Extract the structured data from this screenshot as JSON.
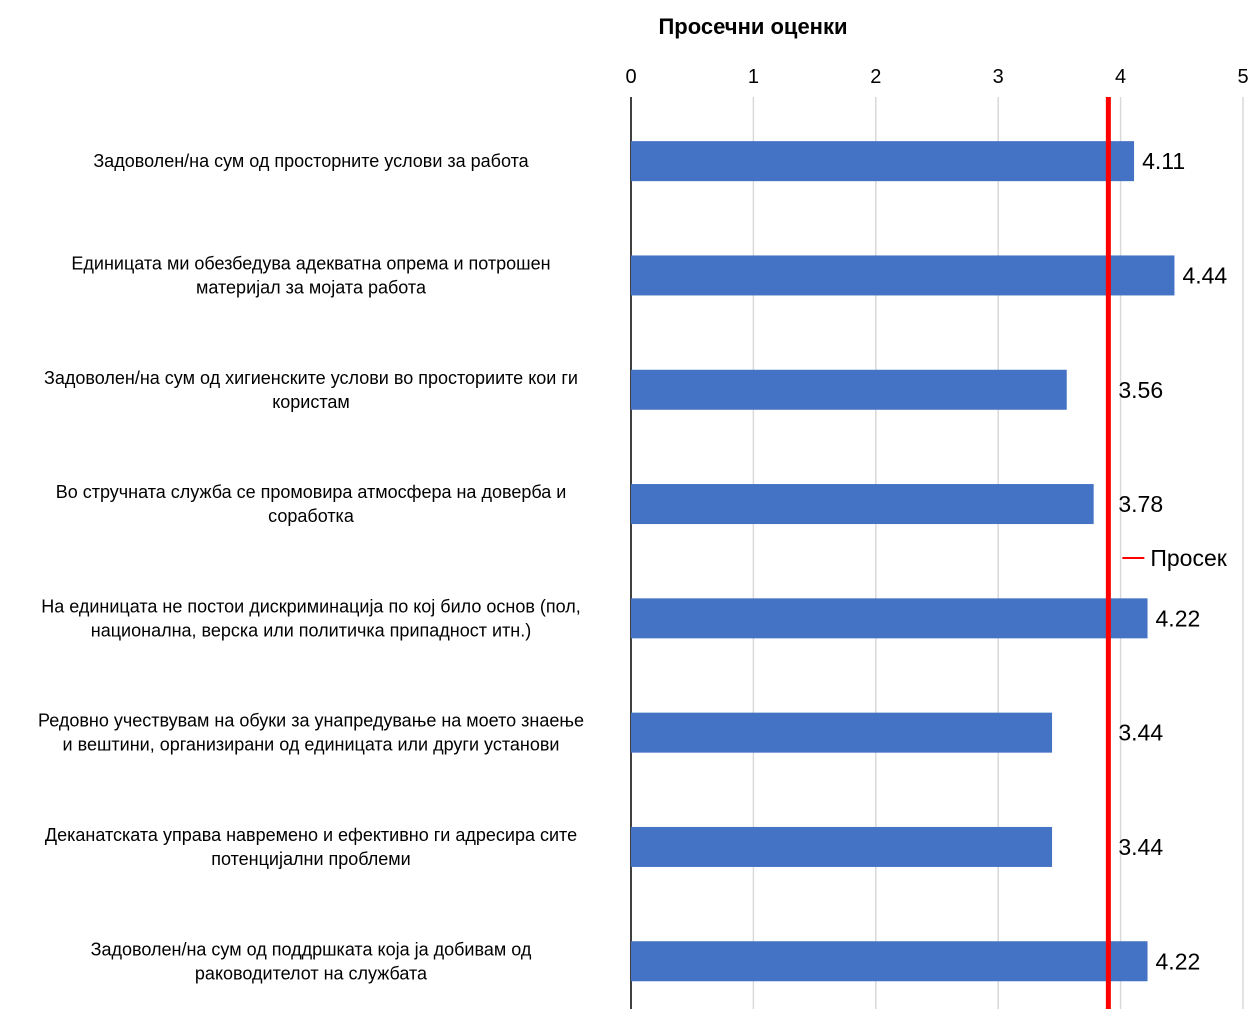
{
  "chart_data": {
    "type": "bar",
    "orientation": "horizontal",
    "title": "Просечни оценки",
    "xlim": [
      0,
      5
    ],
    "x_ticks": [
      "0",
      "1",
      "2",
      "3",
      "4",
      "5"
    ],
    "grid": true,
    "categories": [
      [
        "Задоволен/на сум од просторните услови за работа"
      ],
      [
        "Единицата ми обезбедува адекватна опрема и потрошен",
        "материјал за мојата работа"
      ],
      [
        "Задоволен/на сум од хигиенските услови во просториите кои ги",
        "користам"
      ],
      [
        "Во стручната служба се промовира атмосфера на доверба и",
        "соработка"
      ],
      [
        "На единицата не постои дискриминација по кој било основ (пол,",
        "национална, верска или политичка припадност итн.)"
      ],
      [
        "Редовно учествувам на обуки за унапредување на моето знаење",
        "и вештини, организирани од единицата или други установи"
      ],
      [
        "Деканатската управа навремено и ефективно ги адресира сите",
        "потенцијални проблеми"
      ],
      [
        "Задоволен/на сум од поддршката која ја добивам од",
        "раководителот на службата"
      ]
    ],
    "values": [
      4.11,
      4.44,
      3.56,
      3.78,
      4.22,
      3.44,
      3.44,
      4.22
    ],
    "value_labels": [
      "4.11",
      "4.44",
      "3.56",
      "3.78",
      "4.22",
      "3.44",
      "3.44",
      "4.22"
    ],
    "average_line": {
      "value": 3.9,
      "label": "Просек",
      "color": "#ff0000"
    },
    "bar_color": "#4472c4",
    "legend_placement": "right"
  }
}
